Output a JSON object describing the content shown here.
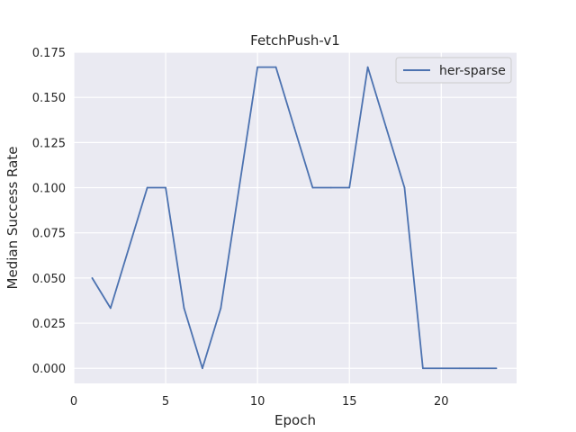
{
  "chart_data": {
    "type": "line",
    "title": "FetchPush-v1",
    "xlabel": "Epoch",
    "ylabel": "Median Success Rate",
    "xlim": [
      0,
      24.1
    ],
    "ylim": [
      -0.00835,
      0.175
    ],
    "xticks": [
      0,
      5,
      10,
      15,
      20
    ],
    "yticks": [
      0.0,
      0.025,
      0.05,
      0.075,
      0.1,
      0.125,
      0.15,
      0.175
    ],
    "xtick_labels": [
      "0",
      "5",
      "10",
      "15",
      "20"
    ],
    "ytick_labels": [
      "0.000",
      "0.025",
      "0.050",
      "0.075",
      "0.100",
      "0.125",
      "0.150",
      "0.175"
    ],
    "grid": true,
    "legend_position": "top-right",
    "series": [
      {
        "name": "her-sparse",
        "color": "#4c72b0",
        "x": [
          1,
          2,
          3,
          4,
          5,
          6,
          7,
          8,
          9,
          10,
          11,
          12,
          13,
          14,
          15,
          16,
          17,
          18,
          19,
          20,
          21,
          22,
          23
        ],
        "y": [
          0.05,
          0.0333,
          0.0667,
          0.1,
          0.1,
          0.0333,
          0.0,
          0.0333,
          0.1,
          0.1667,
          0.1667,
          0.1333,
          0.1,
          0.1,
          0.1,
          0.1667,
          0.1333,
          0.1,
          0.0,
          0.0,
          0.0,
          0.0,
          0.0
        ]
      }
    ],
    "colors": {
      "plot_background": "#eaeaf2",
      "grid": "#ffffff"
    }
  }
}
